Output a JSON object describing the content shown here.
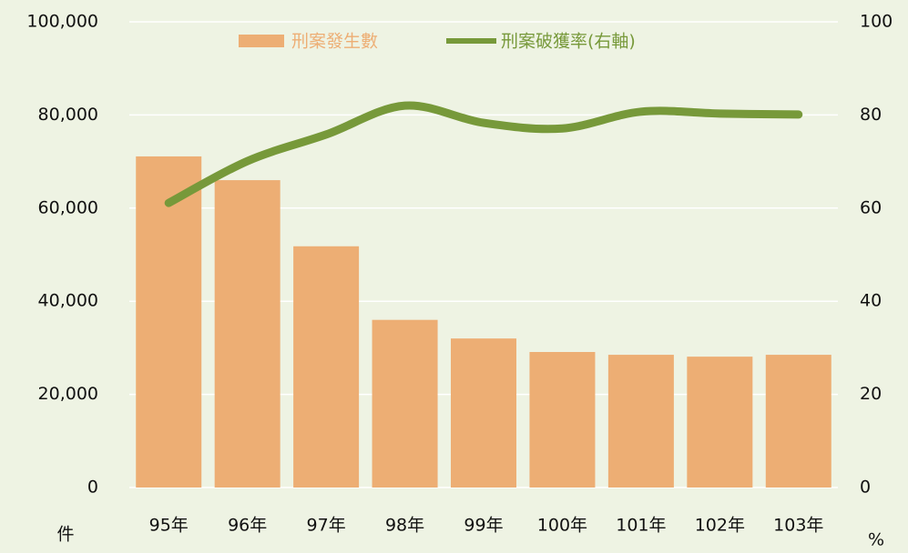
{
  "chart_data": {
    "type": "bar",
    "categories": [
      "95年",
      "96年",
      "97年",
      "98年",
      "99年",
      "100年",
      "101年",
      "102年",
      "103年"
    ],
    "series": [
      {
        "name": "刑案發生數",
        "type": "bar",
        "color": "#edae74",
        "values": [
          71100,
          66000,
          51800,
          36000,
          32000,
          29100,
          28500,
          28100,
          28500
        ]
      },
      {
        "name": "刑案破獲率(右軸)",
        "type": "line",
        "axis": "y2",
        "color": "#77993a",
        "values": [
          61.1,
          70.1,
          75.8,
          82.0,
          78.3,
          77.1,
          80.7,
          80.3,
          80.1
        ]
      }
    ],
    "ylim": [
      0,
      100000
    ],
    "yticks": [
      0,
      {
        "value": 20000,
        "label": "20,000"
      },
      {
        "value": 40000,
        "label": "40,000"
      },
      {
        "value": 60000,
        "label": "60,000"
      },
      {
        "value": 80000,
        "label": "80,000"
      },
      {
        "value": 100000,
        "label": "100,000"
      }
    ],
    "y2lim": [
      0,
      100
    ],
    "y2ticks": [
      0,
      20,
      40,
      60,
      80,
      100
    ],
    "y_unit": "件",
    "y2_unit": "%",
    "grid": true,
    "legend": "top"
  }
}
